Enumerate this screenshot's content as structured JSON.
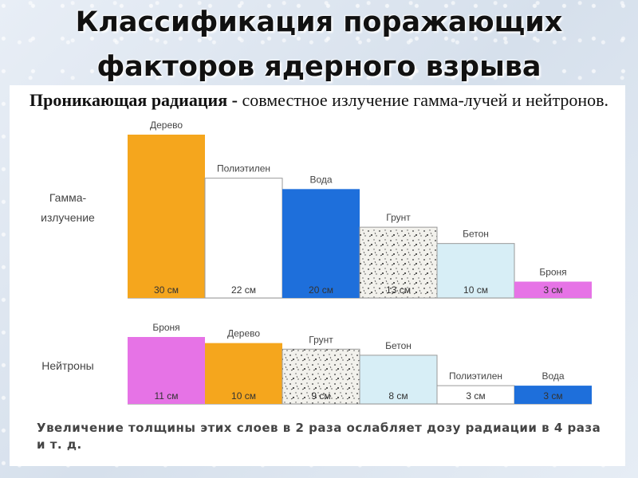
{
  "title_line1": "Классификация поражающих",
  "title_line2": "факторов ядерного взрыва",
  "subtitle_term": "Проникающая радиация -",
  "subtitle_text": " совместное излучение гамма-лучей и нейтронов.",
  "footnote": "Увеличение толщины этих слоев в 2 раза ослабляет дозу радиации в 4 раза и т. д.",
  "colors": {
    "orange": "#f5a61d",
    "white": "#ffffff",
    "blue": "#1e6fdb",
    "soil": "#f2f1ec",
    "light_blue": "#d7eef6",
    "magenta": "#e673e6",
    "outline": "#9a9a9a",
    "text": "#444444"
  },
  "chart_data": [
    {
      "type": "bar",
      "group_label_line1": "Гамма-",
      "group_label_line2": "излучение",
      "categories": [
        "Дерево",
        "Полиэтилен",
        "Вода",
        "Грунт",
        "Бетон",
        "Броня"
      ],
      "values": [
        30,
        22,
        20,
        13,
        10,
        3
      ],
      "value_labels": [
        "30 см",
        "22 см",
        "20 см",
        "13 см",
        "10 см",
        "3 см"
      ],
      "fills": [
        "orange",
        "white",
        "blue",
        "soil",
        "light_blue",
        "magenta"
      ],
      "ylim": [
        0,
        30
      ]
    },
    {
      "type": "bar",
      "group_label_line1": "Нейтроны",
      "group_label_line2": "",
      "categories": [
        "Броня",
        "Дерево",
        "Грунт",
        "Бетон",
        "Полиэтилен",
        "Вода"
      ],
      "values": [
        11,
        10,
        9,
        8,
        3,
        3
      ],
      "value_labels": [
        "11 см",
        "10 см",
        "9 см",
        "8 см",
        "3 см",
        "3 см"
      ],
      "fills": [
        "magenta",
        "orange",
        "soil",
        "light_blue",
        "white",
        "blue"
      ],
      "ylim": [
        0,
        11
      ]
    }
  ]
}
